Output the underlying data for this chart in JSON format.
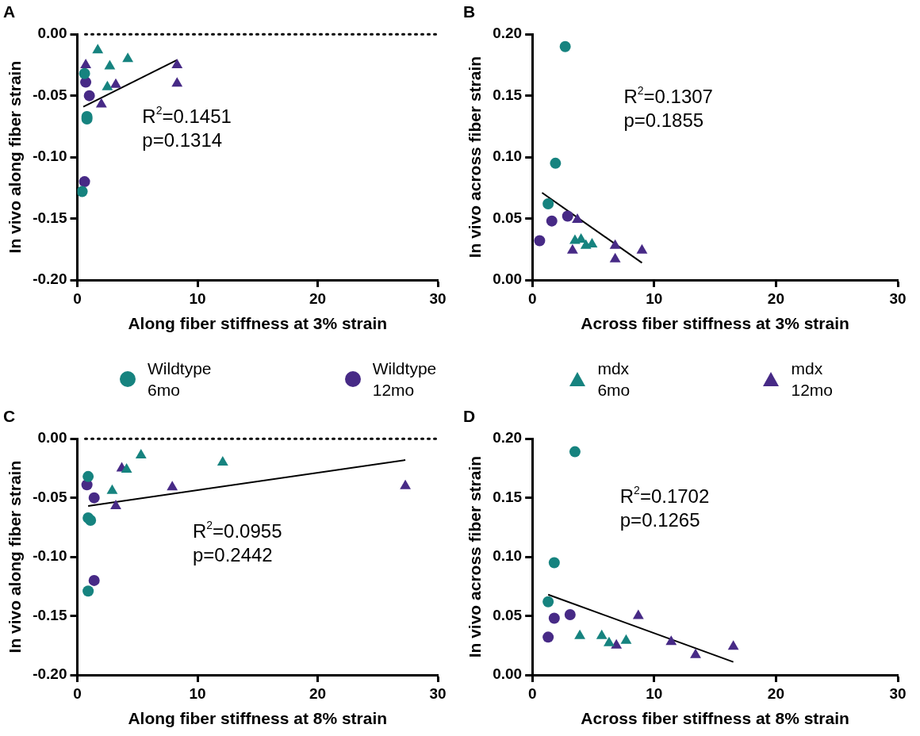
{
  "chart_data": [
    {
      "type": "scatter",
      "title": "A",
      "xlabel": "Along fiber stiffness at 3% strain",
      "ylabel": "In vivo along fiber strain",
      "xlim": [
        0,
        30
      ],
      "xticks": [
        0,
        10,
        20,
        30
      ],
      "ylim": [
        -0.2,
        0
      ],
      "yticks": [
        {
          "value": -0.2,
          "label": "-0.20"
        },
        {
          "value": -0.15,
          "label": "-0.15"
        },
        {
          "value": -0.1,
          "label": "-0.10"
        },
        {
          "value": -0.05,
          "label": "-0.05"
        },
        {
          "value": 0,
          "label": "0.00"
        }
      ],
      "legend": "bottom",
      "annotations": [
        "R$^{2}$=0.1451",
        "p=0.1314"
      ],
      "ref_lines": [
        {
          "axis": "y",
          "value": 0,
          "line_style": "dotted",
          "color": "#000000"
        }
      ],
      "series": [
        {
          "name": "Wildtype 6mo",
          "color": "#16837f",
          "marker": "circle",
          "x": [
            0.6,
            0.8,
            0.8,
            0.4
          ],
          "values": [
            -0.032,
            -0.067,
            -0.069,
            -0.128
          ]
        },
        {
          "name": "Wildtype 12mo",
          "color": "#472a86",
          "marker": "circle",
          "x": [
            0.7,
            1.0,
            0.6
          ],
          "values": [
            -0.039,
            -0.05,
            -0.12
          ]
        },
        {
          "name": "mdx 6mo",
          "color": "#16837f",
          "marker": "triangle",
          "x": [
            1.7,
            2.7,
            4.2,
            2.5
          ],
          "values": [
            -0.013,
            -0.026,
            -0.02,
            -0.043
          ]
        },
        {
          "name": "mdx 12mo",
          "color": "#472a86",
          "marker": "triangle",
          "x": [
            0.7,
            3.2,
            2.0,
            8.3,
            8.3
          ],
          "values": [
            -0.025,
            -0.041,
            -0.057,
            -0.025,
            -0.04
          ]
        },
        {
          "type": "line",
          "color": "#000000",
          "marker": "none",
          "x": [
            0.5,
            8.3
          ],
          "values": [
            -0.059,
            -0.021
          ]
        }
      ]
    },
    {
      "type": "scatter",
      "title": "B",
      "xlabel": "Across fiber stiffness at 3% strain",
      "ylabel": "In vivo across fiber strain",
      "xlim": [
        0,
        30
      ],
      "xticks": [
        0,
        10,
        20,
        30
      ],
      "ylim": [
        0,
        0.2
      ],
      "yticks": [
        {
          "value": 0,
          "label": "0.00"
        },
        {
          "value": 0.05,
          "label": "0.05"
        },
        {
          "value": 0.1,
          "label": "0.10"
        },
        {
          "value": 0.15,
          "label": "0.15"
        },
        {
          "value": 0.2,
          "label": "0.20"
        }
      ],
      "annotations": [
        "R$^{2}$=0.1307",
        "p=0.1855"
      ],
      "series": [
        {
          "name": "Wildtype 6mo",
          "color": "#16837f",
          "marker": "circle",
          "x": [
            2.7,
            1.9,
            1.3
          ],
          "values": [
            0.19,
            0.095,
            0.062
          ]
        },
        {
          "name": "Wildtype 12mo",
          "color": "#472a86",
          "marker": "circle",
          "x": [
            0.6,
            1.6,
            2.9
          ],
          "values": [
            0.032,
            0.048,
            0.052
          ]
        },
        {
          "name": "mdx 6mo",
          "color": "#16837f",
          "marker": "triangle",
          "x": [
            3.5,
            4.0,
            4.4,
            4.9
          ],
          "values": [
            0.032,
            0.033,
            0.028,
            0.029
          ]
        },
        {
          "name": "mdx 12mo",
          "color": "#472a86",
          "marker": "triangle",
          "x": [
            3.7,
            3.3,
            6.8,
            6.8,
            9.0
          ],
          "values": [
            0.049,
            0.024,
            0.028,
            0.017,
            0.024
          ]
        },
        {
          "type": "line",
          "color": "#000000",
          "marker": "none",
          "x": [
            0.8,
            9.0
          ],
          "values": [
            0.071,
            0.014
          ]
        }
      ]
    },
    {
      "type": "scatter",
      "title": "C",
      "xlabel": "Along fiber stiffness at 8% strain",
      "ylabel": "In vivo along fiber strain",
      "xlim": [
        0,
        30
      ],
      "xticks": [
        0,
        10,
        20,
        30
      ],
      "ylim": [
        -0.2,
        0
      ],
      "yticks": [
        {
          "value": -0.2,
          "label": "-0.20"
        },
        {
          "value": -0.15,
          "label": "-0.15"
        },
        {
          "value": -0.1,
          "label": "-0.10"
        },
        {
          "value": -0.05,
          "label": "-0.05"
        },
        {
          "value": 0,
          "label": "0.00"
        }
      ],
      "annotations": [
        "R$^{2}$=0.0955",
        "p=0.2442"
      ],
      "ref_lines": [
        {
          "axis": "y",
          "value": 0,
          "line_style": "dotted",
          "color": "#000000"
        }
      ],
      "series": [
        {
          "name": "Wildtype 6mo",
          "color": "#16837f",
          "marker": "circle",
          "x": [
            0.9,
            0.9,
            1.1,
            0.9
          ],
          "values": [
            -0.032,
            -0.067,
            -0.069,
            -0.129
          ]
        },
        {
          "name": "Wildtype 12mo",
          "color": "#472a86",
          "marker": "circle",
          "x": [
            0.8,
            1.4,
            1.4
          ],
          "values": [
            -0.039,
            -0.05,
            -0.12
          ]
        },
        {
          "name": "mdx 6mo",
          "color": "#16837f",
          "marker": "triangle",
          "x": [
            5.3,
            4.1,
            2.9,
            12.1
          ],
          "values": [
            -0.014,
            -0.026,
            -0.044,
            -0.02
          ]
        },
        {
          "name": "mdx 12mo",
          "color": "#472a86",
          "marker": "triangle",
          "x": [
            3.7,
            3.2,
            7.9,
            27.3
          ],
          "values": [
            -0.025,
            -0.057,
            -0.041,
            -0.04
          ]
        },
        {
          "type": "line",
          "color": "#000000",
          "marker": "none",
          "x": [
            0.9,
            27.3
          ],
          "values": [
            -0.057,
            -0.018
          ]
        }
      ]
    },
    {
      "type": "scatter",
      "title": "D",
      "xlabel": "Across fiber stiffness at 8% strain",
      "ylabel": "In vivo across fiber strain",
      "xlim": [
        0,
        30
      ],
      "xticks": [
        0,
        10,
        20,
        30
      ],
      "ylim": [
        0,
        0.2
      ],
      "yticks": [
        {
          "value": 0,
          "label": "0.00"
        },
        {
          "value": 0.05,
          "label": "0.05"
        },
        {
          "value": 0.1,
          "label": "0.10"
        },
        {
          "value": 0.15,
          "label": "0.15"
        },
        {
          "value": 0.2,
          "label": "0.20"
        }
      ],
      "annotations": [
        "R$^{2}$=0.1702",
        "p=0.1265"
      ],
      "series": [
        {
          "name": "Wildtype 6mo",
          "color": "#16837f",
          "marker": "circle",
          "x": [
            3.5,
            1.8,
            1.3
          ],
          "values": [
            0.189,
            0.095,
            0.062
          ]
        },
        {
          "name": "Wildtype 12mo",
          "color": "#472a86",
          "marker": "circle",
          "x": [
            1.3,
            1.8,
            3.1
          ],
          "values": [
            0.032,
            0.048,
            0.051
          ]
        },
        {
          "name": "mdx 6mo",
          "color": "#16837f",
          "marker": "triangle",
          "x": [
            3.9,
            5.7,
            6.3,
            7.7
          ],
          "values": [
            0.033,
            0.033,
            0.027,
            0.029
          ]
        },
        {
          "name": "mdx 12mo",
          "color": "#472a86",
          "marker": "triangle",
          "x": [
            8.7,
            6.9,
            11.4,
            13.4,
            16.5
          ],
          "values": [
            0.05,
            0.025,
            0.028,
            0.017,
            0.024
          ]
        },
        {
          "type": "line",
          "color": "#000000",
          "marker": "none",
          "x": [
            1.3,
            16.5
          ],
          "values": [
            0.068,
            0.011
          ]
        }
      ]
    }
  ]
}
